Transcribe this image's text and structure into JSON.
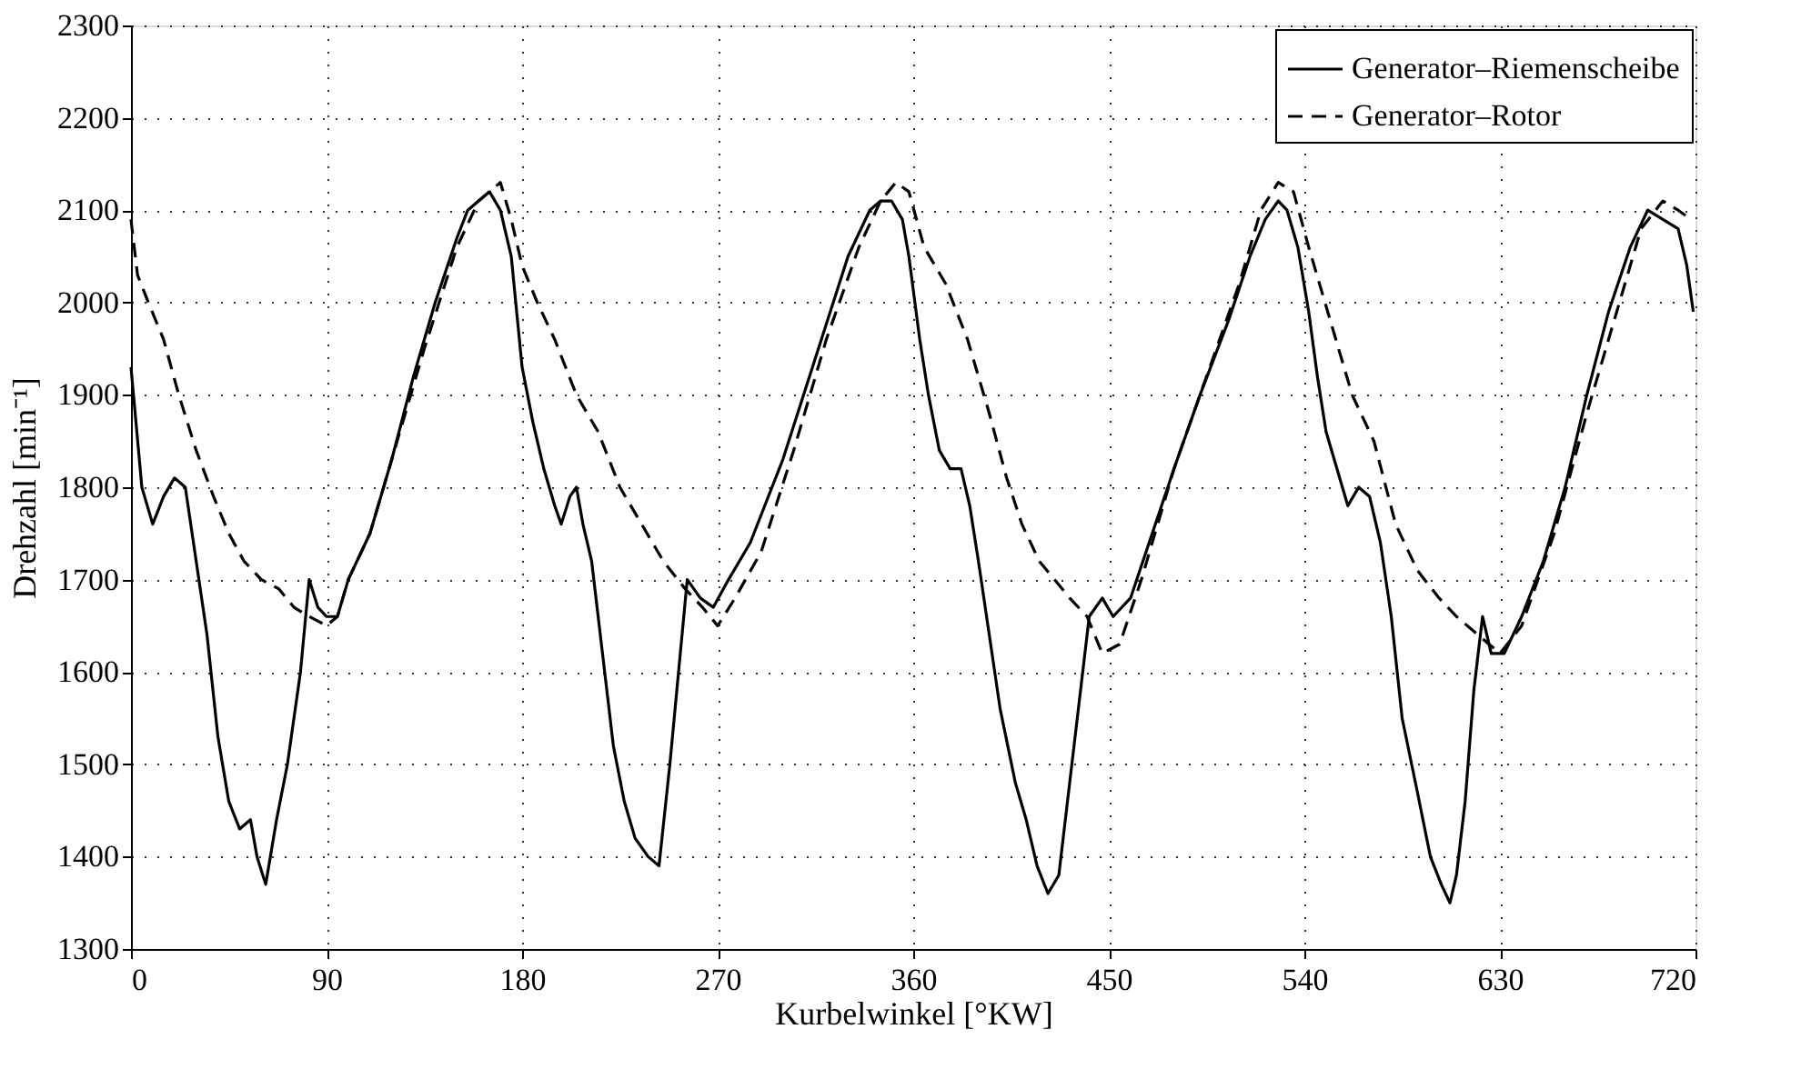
{
  "chart_data": {
    "type": "line",
    "xlabel": "Kurbelwinkel [°KW]",
    "ylabel": "Drehzahl [min⁻¹]",
    "xlim": [
      0,
      720
    ],
    "xticks": [
      0,
      90,
      180,
      270,
      360,
      450,
      540,
      630,
      720
    ],
    "ylim": [
      1300,
      2300
    ],
    "yticks": [
      1300,
      1400,
      1500,
      1600,
      1700,
      1800,
      1900,
      2000,
      2100,
      2200,
      2300
    ],
    "grid": true,
    "legend": "top right",
    "series": [
      {
        "name": "Generator–Riemenscheibe",
        "color": "#000000",
        "line_style": "solid",
        "x": [
          0,
          5,
          10,
          15,
          20,
          25,
          30,
          35,
          40,
          45,
          50,
          55,
          58,
          62,
          67,
          72,
          78,
          82,
          86,
          90,
          95,
          100,
          110,
          120,
          130,
          140,
          150,
          155,
          160,
          165,
          170,
          175,
          180,
          185,
          190,
          195,
          198,
          202,
          205,
          208,
          212,
          217,
          222,
          227,
          232,
          238,
          243,
          248,
          252,
          256,
          262,
          268,
          275,
          285,
          300,
          315,
          330,
          340,
          345,
          350,
          355,
          358,
          363,
          367,
          372,
          377,
          382,
          386,
          390,
          395,
          400,
          407,
          412,
          417,
          422,
          427,
          432,
          437,
          441,
          447,
          452,
          460,
          470,
          480,
          492,
          505,
          515,
          522,
          528,
          532,
          537,
          542,
          546,
          550,
          555,
          560,
          565,
          570,
          575,
          580,
          585,
          592,
          598,
          603,
          607,
          610,
          614,
          618,
          622,
          626,
          632,
          640,
          650,
          660,
          670,
          680,
          690,
          698,
          705,
          712,
          716,
          719
        ],
        "values": [
          1930,
          1800,
          1760,
          1790,
          1810,
          1800,
          1720,
          1640,
          1530,
          1460,
          1430,
          1440,
          1400,
          1370,
          1440,
          1500,
          1600,
          1700,
          1670,
          1660,
          1660,
          1700,
          1750,
          1830,
          1920,
          2000,
          2070,
          2100,
          2110,
          2120,
          2100,
          2050,
          1930,
          1870,
          1820,
          1780,
          1760,
          1790,
          1800,
          1760,
          1720,
          1620,
          1520,
          1460,
          1420,
          1400,
          1390,
          1500,
          1600,
          1700,
          1680,
          1670,
          1700,
          1740,
          1830,
          1940,
          2050,
          2100,
          2110,
          2110,
          2090,
          2050,
          1960,
          1900,
          1840,
          1820,
          1820,
          1780,
          1720,
          1640,
          1560,
          1480,
          1440,
          1390,
          1360,
          1380,
          1480,
          1580,
          1660,
          1680,
          1660,
          1680,
          1750,
          1820,
          1900,
          1980,
          2050,
          2090,
          2110,
          2100,
          2060,
          1990,
          1920,
          1860,
          1820,
          1780,
          1800,
          1790,
          1740,
          1660,
          1550,
          1470,
          1400,
          1370,
          1350,
          1380,
          1460,
          1580,
          1660,
          1620,
          1620,
          1660,
          1720,
          1800,
          1900,
          1990,
          2060,
          2100,
          2090,
          2080,
          2040,
          1990
        ]
      },
      {
        "name": "Generator–Rotor",
        "color": "#000000",
        "line_style": "dashed",
        "x": [
          0,
          3,
          8,
          15,
          22,
          30,
          38,
          45,
          52,
          60,
          68,
          75,
          82,
          90,
          95,
          100,
          110,
          120,
          135,
          150,
          160,
          170,
          175,
          180,
          187,
          195,
          205,
          215,
          225,
          235,
          245,
          255,
          263,
          270,
          278,
          290,
          305,
          320,
          335,
          345,
          352,
          358,
          365,
          375,
          385,
          395,
          403,
          410,
          418,
          425,
          432,
          440,
          447,
          455,
          465,
          480,
          495,
          510,
          520,
          528,
          535,
          542,
          552,
          562,
          572,
          582,
          592,
          602,
          610,
          620,
          630,
          640,
          655,
          670,
          685,
          695,
          705,
          712,
          718
        ],
        "values": [
          2090,
          2030,
          2000,
          1960,
          1900,
          1840,
          1790,
          1750,
          1720,
          1700,
          1690,
          1670,
          1660,
          1650,
          1660,
          1700,
          1750,
          1830,
          1950,
          2060,
          2110,
          2130,
          2090,
          2040,
          2000,
          1960,
          1900,
          1860,
          1800,
          1760,
          1720,
          1690,
          1670,
          1650,
          1680,
          1730,
          1840,
          1960,
          2060,
          2110,
          2130,
          2120,
          2060,
          2020,
          1960,
          1880,
          1810,
          1760,
          1720,
          1700,
          1680,
          1660,
          1620,
          1630,
          1700,
          1820,
          1920,
          2020,
          2100,
          2130,
          2120,
          2060,
          1980,
          1900,
          1850,
          1760,
          1710,
          1680,
          1660,
          1640,
          1620,
          1650,
          1750,
          1880,
          2000,
          2080,
          2110,
          2100,
          2090
        ]
      }
    ]
  }
}
